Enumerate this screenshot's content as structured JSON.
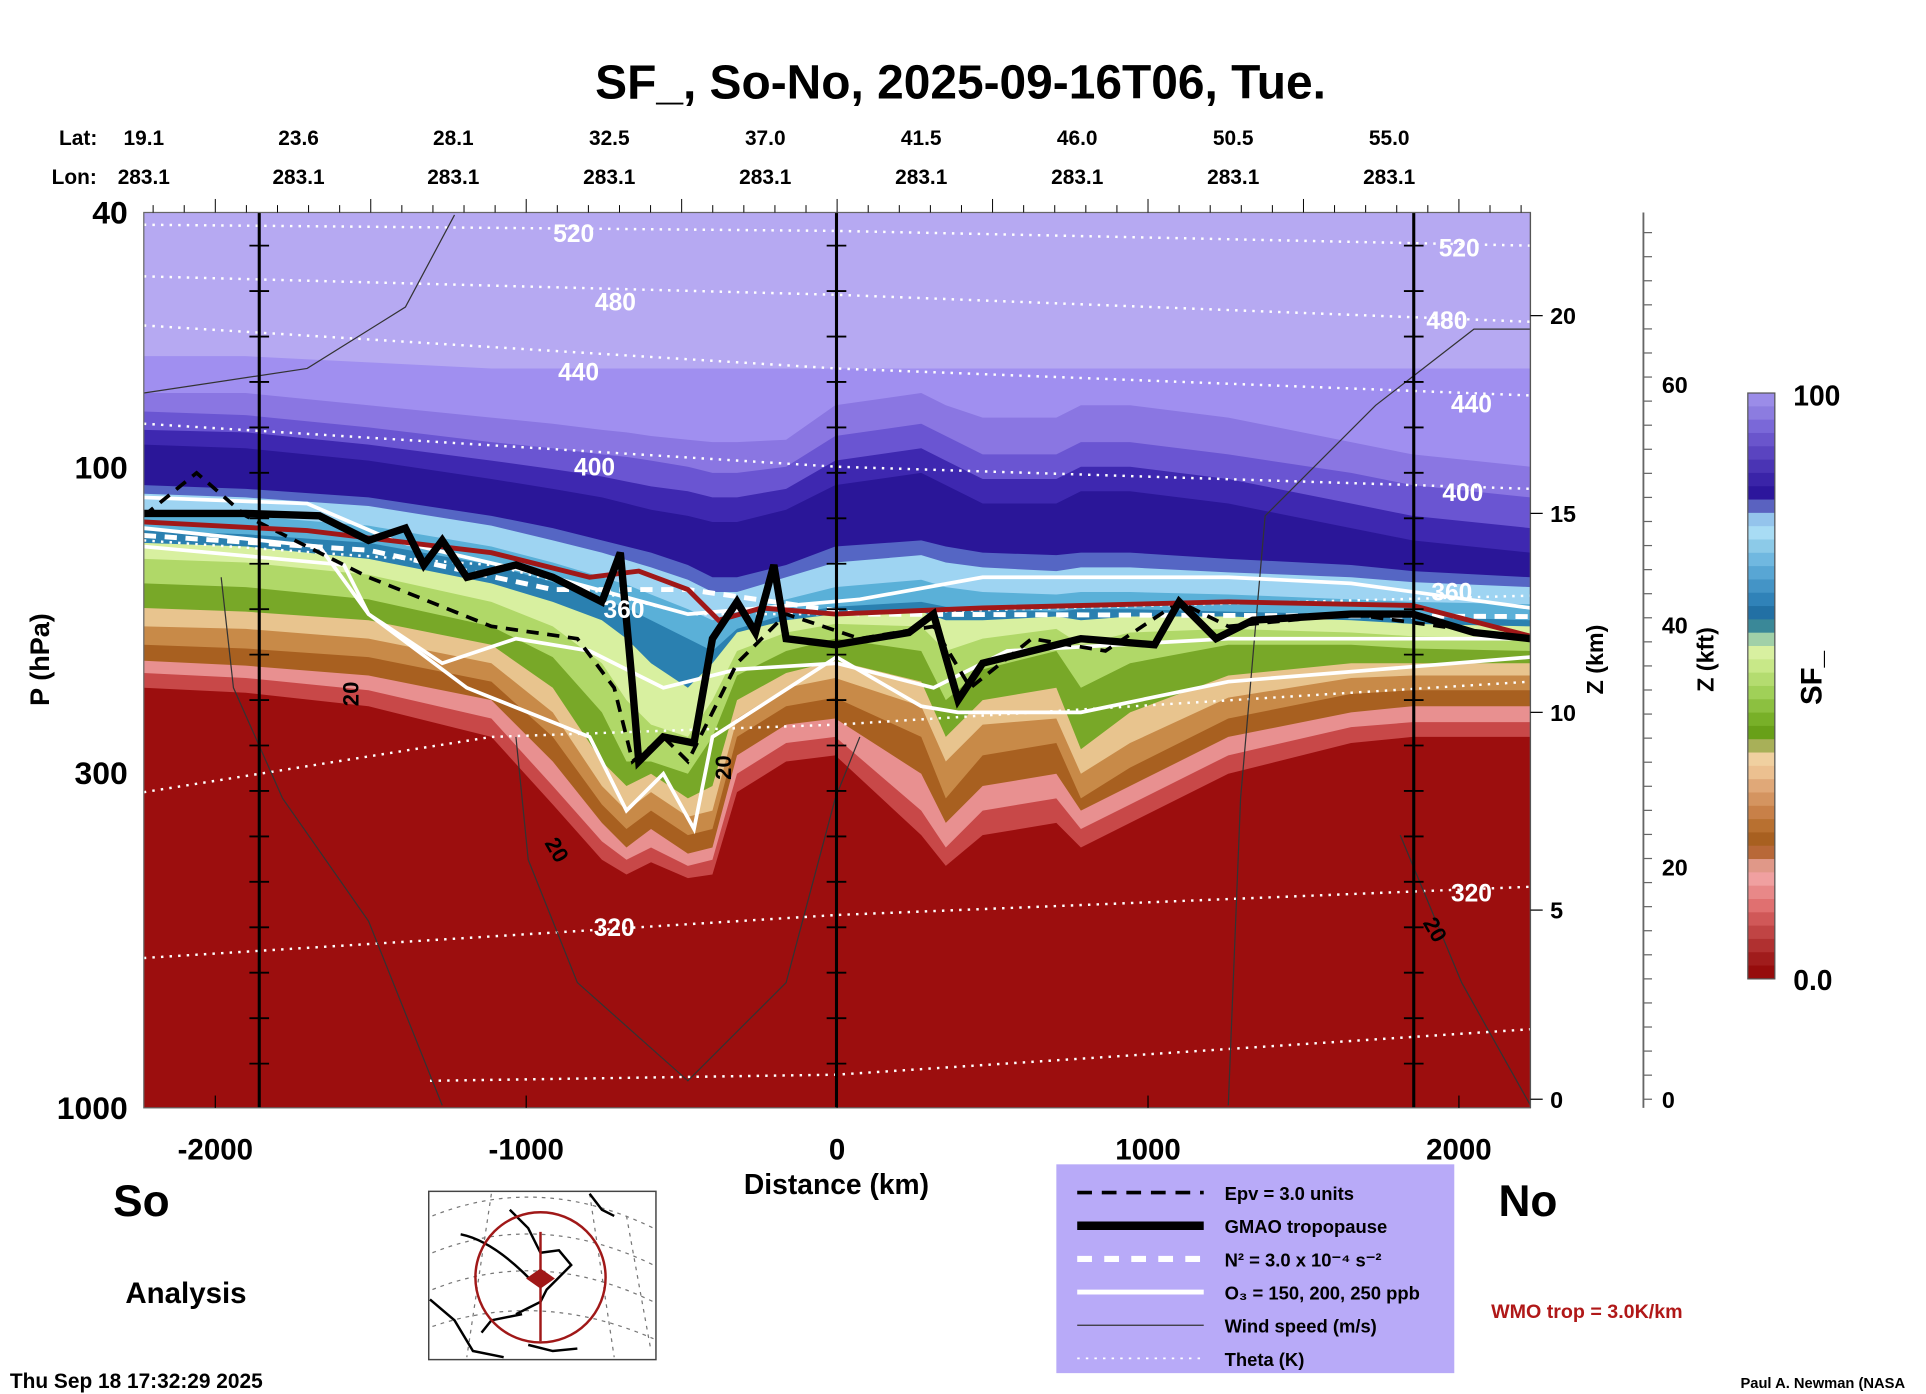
{
  "chart_data": {
    "type": "heatmap",
    "title": "SF_, So-No, 2025-09-16T06, Tue.",
    "xlabel": "Distance (km)",
    "ylabel": "P (hPa)",
    "y2label": "Z (km)",
    "y3label": "Z (kft)",
    "xlim": [
      -2230,
      2230
    ],
    "ylim": [
      1000,
      40
    ],
    "yscale": "log",
    "x_ticks": [
      "-2000",
      "-1000",
      "0",
      "1000",
      "2000"
    ],
    "y_ticks": [
      "40",
      "100",
      "300",
      "1000"
    ],
    "zkm_ticks": [
      "20",
      "15",
      "10",
      "5",
      "0"
    ],
    "zkft_ticks": [
      "60",
      "40",
      "20",
      "0"
    ],
    "lat_label": "Lat:",
    "lon_label": "Lon:",
    "lats": [
      "19.1",
      "23.6",
      "28.1",
      "32.5",
      "37.0",
      "41.5",
      "46.0",
      "50.5",
      "55.0"
    ],
    "lons": [
      "283.1",
      "283.1",
      "283.1",
      "283.1",
      "283.1",
      "283.1",
      "283.1",
      "283.1",
      "283.1"
    ],
    "colorbar": {
      "label": "SF_",
      "min": "0.0",
      "max": "100"
    },
    "theta_labels": [
      "520",
      "480",
      "440",
      "400",
      "360",
      "320",
      "520",
      "480",
      "440",
      "400",
      "360",
      "320"
    ],
    "wind_labels": [
      "20",
      "20",
      "20",
      "20"
    ],
    "grid": false
  },
  "labels": {
    "south": "So",
    "north": "No",
    "analysis": "Analysis",
    "timestamp": "Thu Sep 18 17:32:29 2025",
    "credit": "Paul A. Newman (NASA",
    "wmo": "WMO trop = 3.0K/km"
  },
  "legend": {
    "items": [
      {
        "label": "Epv = 3.0 units"
      },
      {
        "label": "GMAO tropopause"
      },
      {
        "label": "N² = 3.0 x 10⁻⁴ s⁻²"
      },
      {
        "label": "O₃ = 150, 200, 250 ppb"
      },
      {
        "label": "Wind speed (m/s)"
      },
      {
        "label": "Theta (K)"
      }
    ]
  },
  "colors": {
    "legend_bg": "#b8aaf8",
    "wmo": "#b01818",
    "trop_red": "#9c0e0e"
  }
}
